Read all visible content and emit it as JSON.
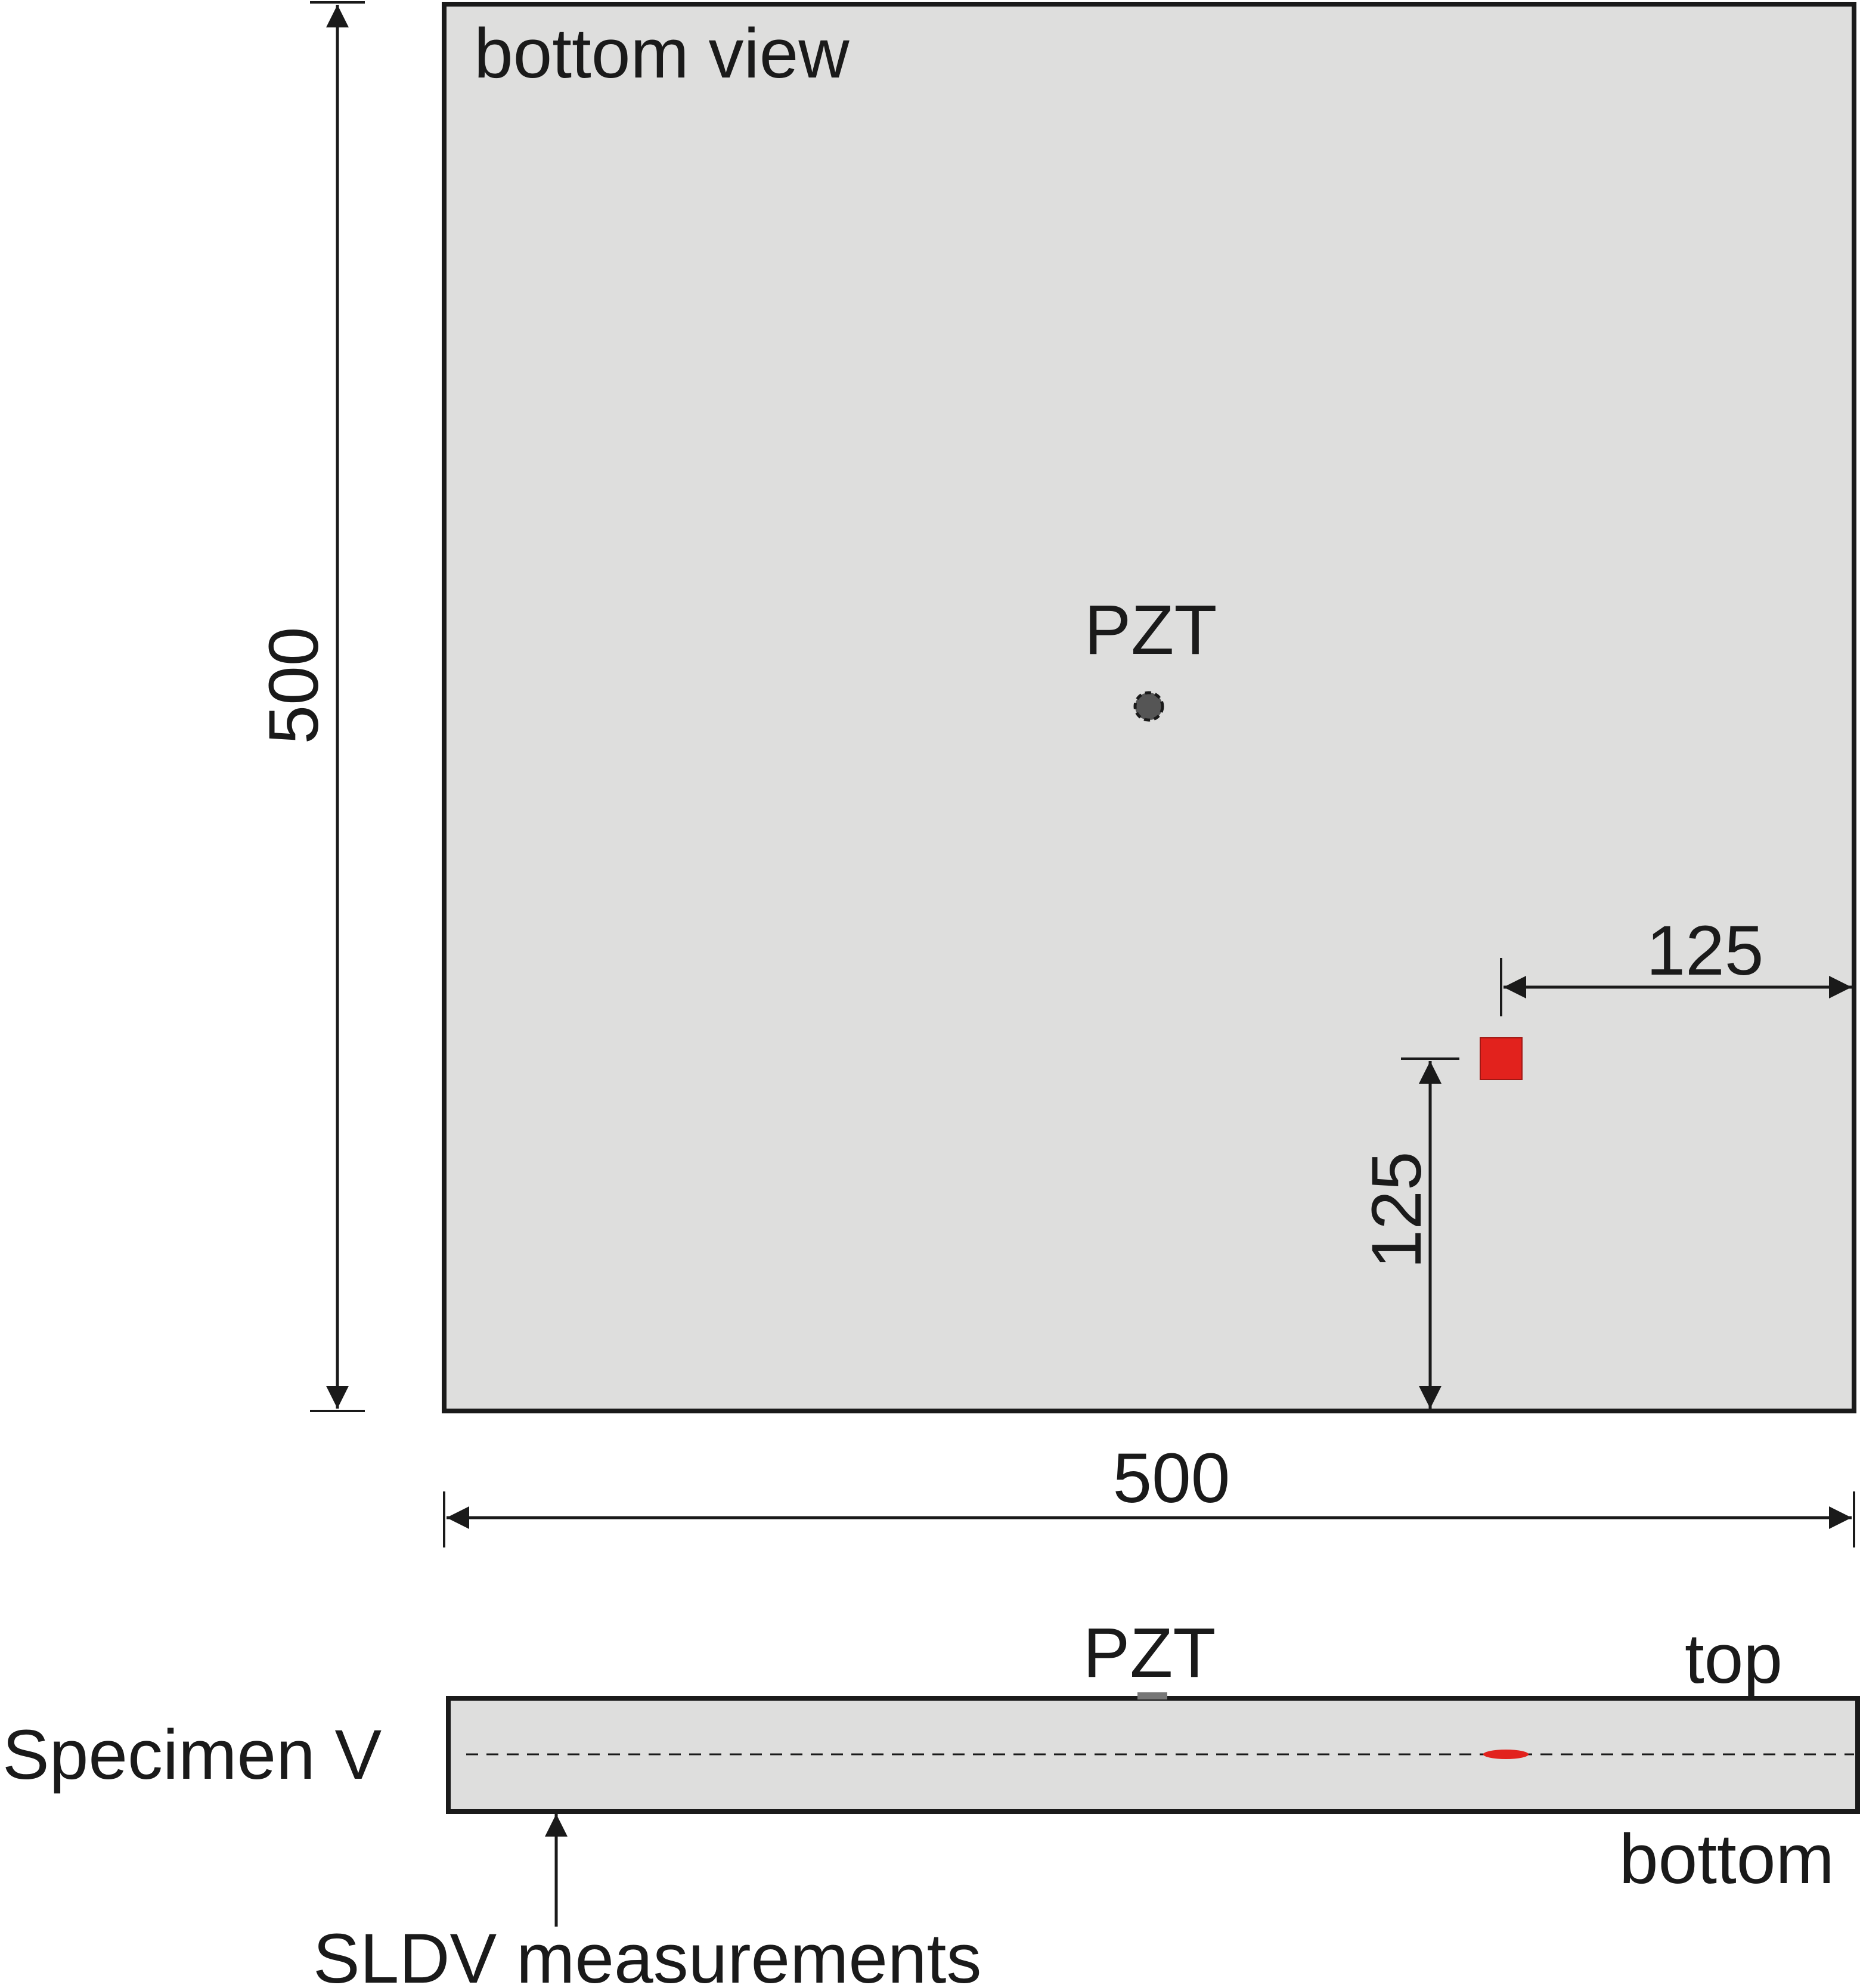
{
  "plan_view": {
    "title": "bottom view",
    "height_dim": "500",
    "width_dim": "500",
    "pzt_label": "PZT",
    "defect_offset_x": "125",
    "defect_offset_y": "125"
  },
  "section_view": {
    "specimen_label": "Specimen V",
    "pzt_label": "PZT",
    "top_label": "top",
    "bottom_label": "bottom",
    "measurement_label": "SLDV measurements"
  },
  "colors": {
    "plate_fill": "#dededd",
    "outline": "#1a1a1a",
    "defect": "#e2221d",
    "pzt": "#555555"
  }
}
